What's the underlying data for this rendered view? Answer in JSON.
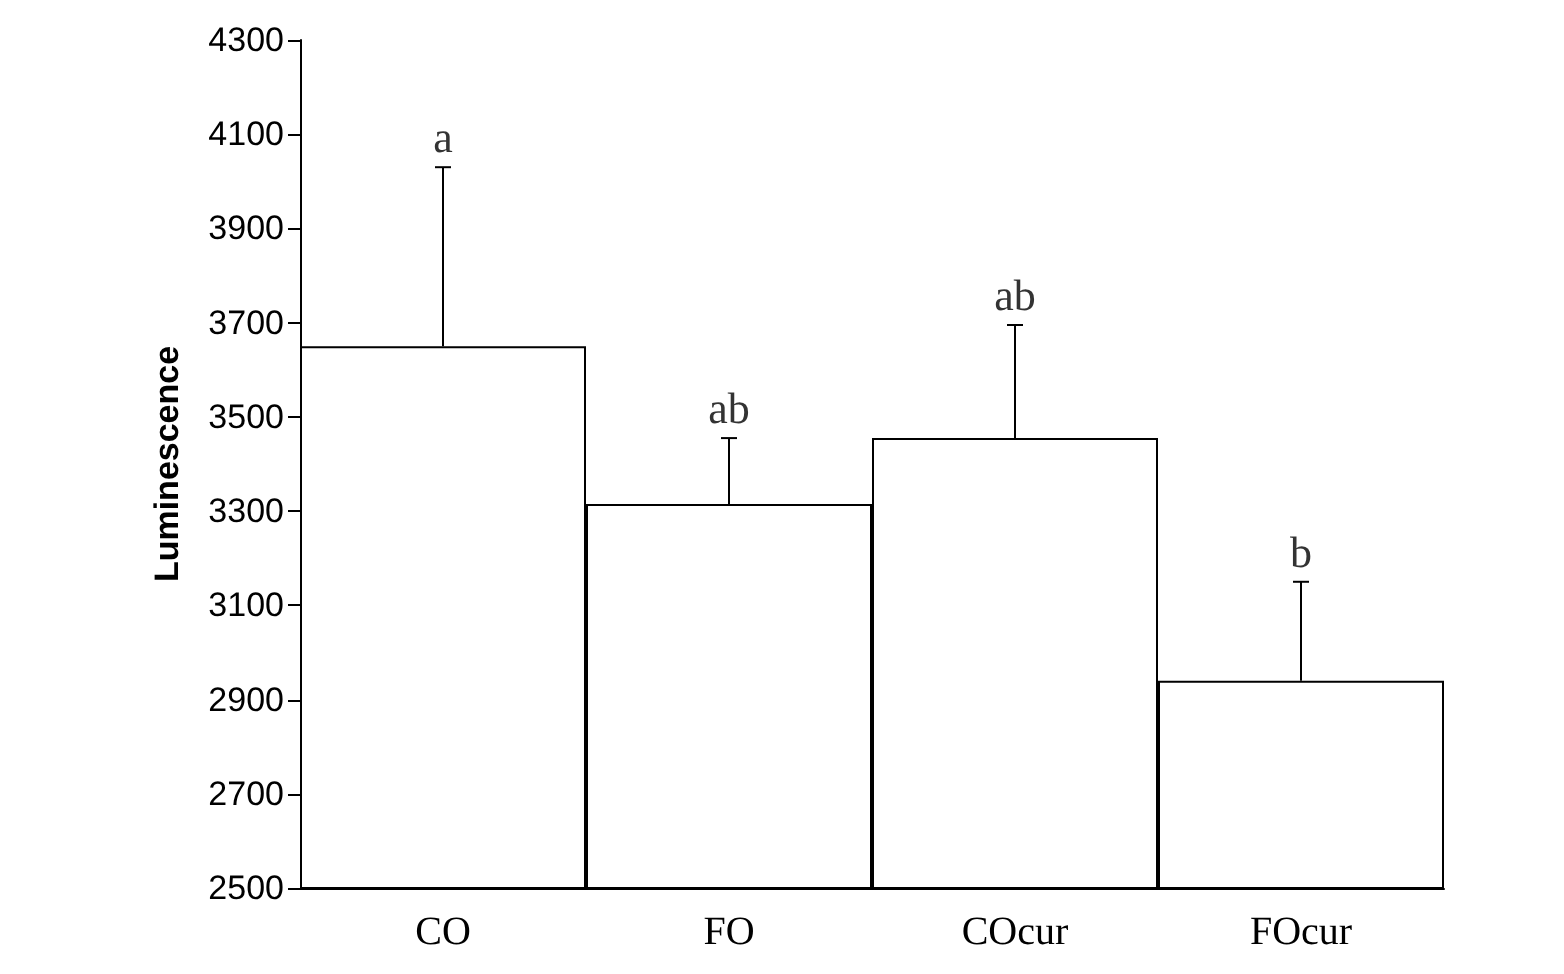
{
  "chart_data": {
    "type": "bar",
    "ylabel": "Luminescence",
    "categories": [
      "CO",
      "FO",
      "COcur",
      "FOcur"
    ],
    "values": [
      3650,
      3315,
      3455,
      2940
    ],
    "errors": [
      [
        3650,
        4030
      ],
      [
        3315,
        3455
      ],
      [
        3455,
        3695
      ],
      [
        2940,
        3150
      ]
    ],
    "colors": [
      "#ffffff",
      "#ffffff",
      "#ffffff",
      "#ffffff"
    ],
    "ylim": [
      2500,
      4300
    ],
    "yticks": [
      2500,
      2700,
      2900,
      3100,
      3300,
      3500,
      3700,
      3900,
      4100,
      4300
    ],
    "grid": false,
    "annotations": [
      {
        "text": "a",
        "x": "CO",
        "y": 4030
      },
      {
        "text": "ab",
        "x": "FO",
        "y": 3455
      },
      {
        "text": "ab",
        "x": "COcur",
        "y": 3695
      },
      {
        "text": "b",
        "x": "FOcur",
        "y": 3150
      }
    ]
  }
}
